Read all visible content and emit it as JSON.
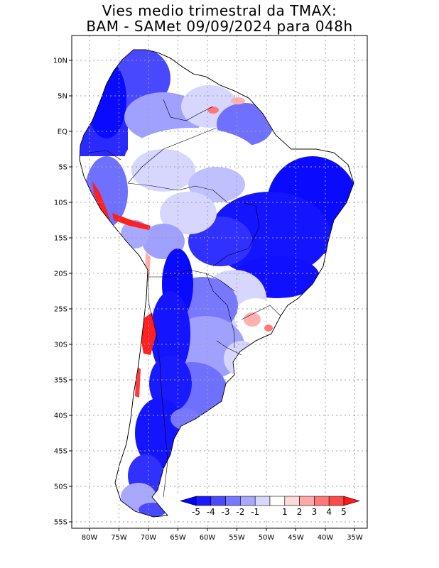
{
  "title_line1": "Vies medio trimestral da TMAX:",
  "title_line2": "BAM - SAMet 09/09/2024  para 048h",
  "lat_ticks": [
    {
      "label": "10N",
      "lat": 10
    },
    {
      "label": "5N",
      "lat": 5
    },
    {
      "label": "EQ",
      "lat": 0
    },
    {
      "label": "5S",
      "lat": -5
    },
    {
      "label": "10S",
      "lat": -10
    },
    {
      "label": "15S",
      "lat": -15
    },
    {
      "label": "20S",
      "lat": -20
    },
    {
      "label": "25S",
      "lat": -25
    },
    {
      "label": "30S",
      "lat": -30
    },
    {
      "label": "35S",
      "lat": -35
    },
    {
      "label": "40S",
      "lat": -40
    },
    {
      "label": "45S",
      "lat": -45
    },
    {
      "label": "50S",
      "lat": -50
    },
    {
      "label": "55S",
      "lat": -55
    }
  ],
  "lon_ticks": [
    {
      "label": "80W",
      "lon": -80
    },
    {
      "label": "75W",
      "lon": -75
    },
    {
      "label": "70W",
      "lon": -70
    },
    {
      "label": "65W",
      "lon": -65
    },
    {
      "label": "60W",
      "lon": -60
    },
    {
      "label": "55W",
      "lon": -55
    },
    {
      "label": "50W",
      "lon": -50
    },
    {
      "label": "45W",
      "lon": -45
    },
    {
      "label": "40W",
      "lon": -40
    },
    {
      "label": "35W",
      "lon": -35
    }
  ],
  "colorbar": {
    "boxes": [
      "#1a1aff",
      "#4a4aff",
      "#7878ff",
      "#a8a8ff",
      "#d8d8ff",
      "#ffffff",
      "#ffd8d8",
      "#ffa8a8",
      "#ff7878",
      "#ff4a4a"
    ],
    "under_color": "#0000ff",
    "over_color": "#ff1a1a",
    "labels": [
      "-5",
      "-4",
      "-3",
      "-2",
      "-1",
      "1",
      "2",
      "3",
      "4",
      "5"
    ]
  },
  "colors": {
    "strong_blue": "#0a0aff",
    "mid_blue": "#5050ff",
    "light_blue": "#a0a0ff",
    "pale_blue": "#d6d6ff",
    "red": "#ff2020",
    "pink": "#ffb0b0",
    "land_white": "#ffffff",
    "grid": "#a0a0a0"
  }
}
